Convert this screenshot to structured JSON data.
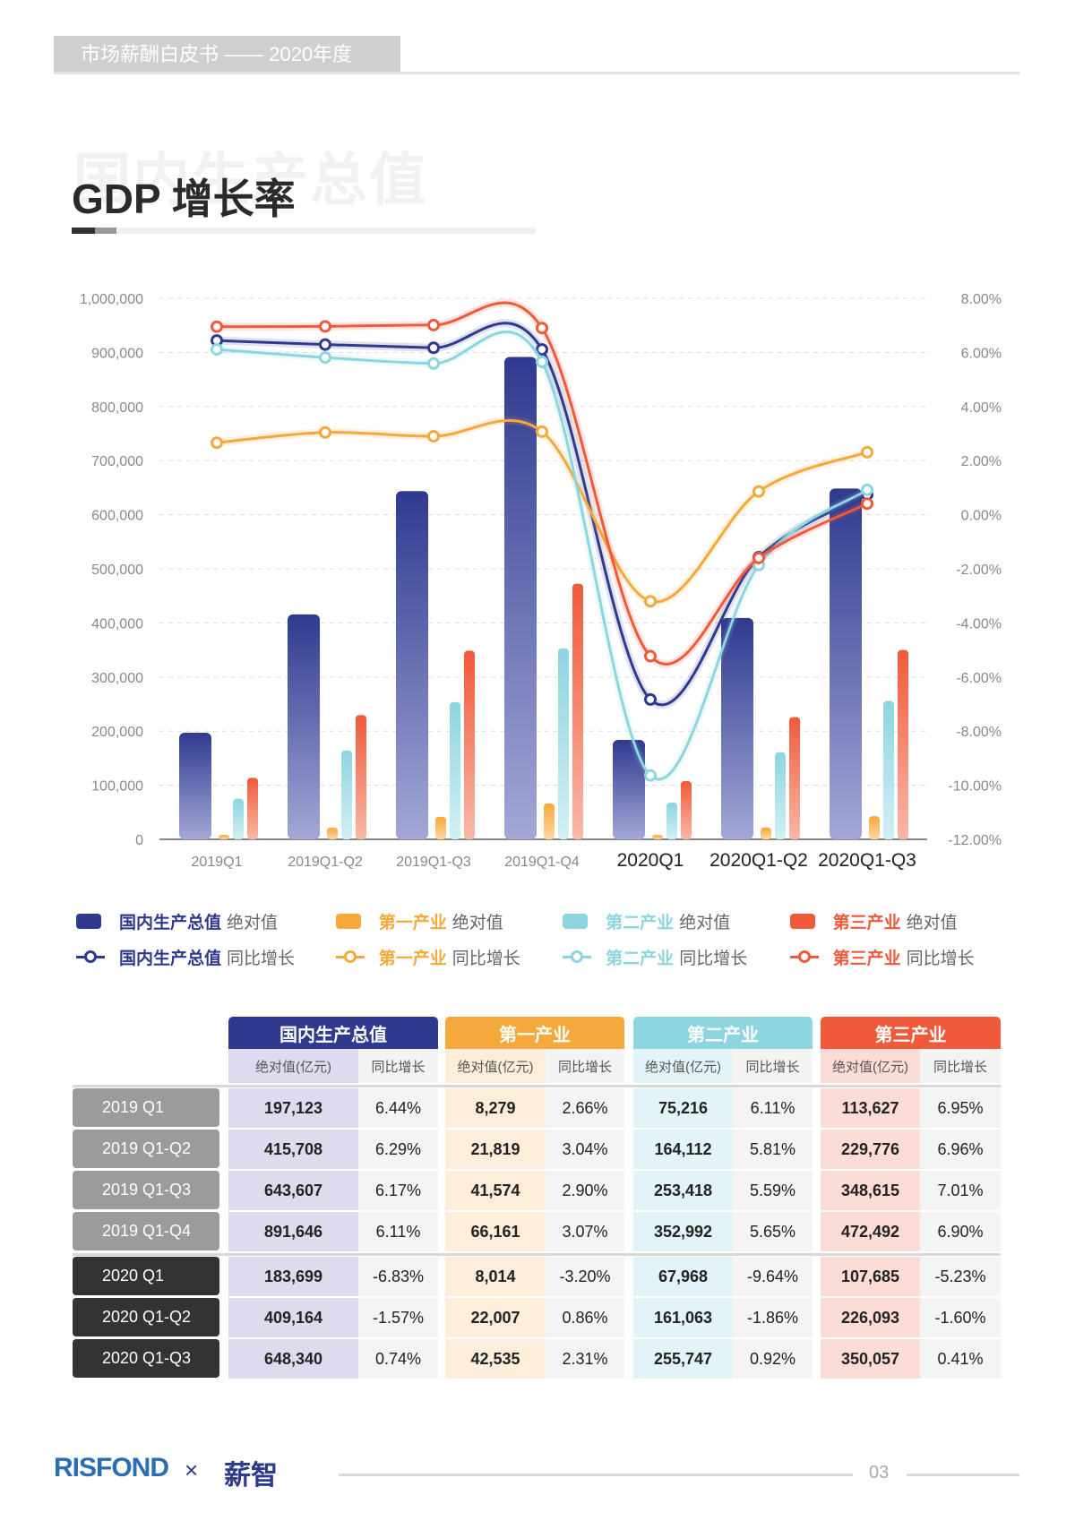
{
  "header": {
    "label": "市场薪酬白皮书 —— 2020年度"
  },
  "page": {
    "watermark": "国内生产总值",
    "title": "GDP 增长率"
  },
  "colors": {
    "gdp": "#2f3a8f",
    "primary": "#f5a83b",
    "secondary": "#8dd5df",
    "tertiary": "#f05a3a"
  },
  "chart_data": {
    "type": "bar+line",
    "categories": [
      "2019Q1",
      "2019Q1-Q2",
      "2019Q1-Q3",
      "2019Q1-Q4",
      "2020Q1",
      "2020Q1-Q2",
      "2020Q1-Q3"
    ],
    "y_left": {
      "range": [
        0,
        1000000
      ],
      "ticks": [
        "1,000,000",
        "900,000",
        "800,000",
        "700,000",
        "600,000",
        "500,000",
        "400,000",
        "300,000",
        "200,000",
        "100,000",
        "0"
      ]
    },
    "y_right": {
      "range": [
        -12,
        8
      ],
      "ticks": [
        "8.00%",
        "6.00%",
        "4.00%",
        "2.00%",
        "0.00%",
        "-2.00%",
        "-4.00%",
        "-6.00%",
        "-8.00%",
        "-10.00%",
        "-12.00%"
      ]
    },
    "grid": true,
    "legend_position": "bottom",
    "bar_series": [
      {
        "name": "国内生产总值",
        "suffix": "绝对值",
        "color_key": "gdp",
        "values": [
          197123,
          415708,
          643607,
          891646,
          183699,
          409164,
          648340
        ]
      },
      {
        "name": "第一产业",
        "suffix": "绝对值",
        "color_key": "primary",
        "values": [
          8279,
          21819,
          41574,
          66161,
          8014,
          22007,
          42535
        ]
      },
      {
        "name": "第二产业",
        "suffix": "绝对值",
        "color_key": "secondary",
        "values": [
          75216,
          164112,
          253418,
          352992,
          67968,
          161063,
          255747
        ]
      },
      {
        "name": "第三产业",
        "suffix": "绝对值",
        "color_key": "tertiary",
        "values": [
          113627,
          229776,
          348615,
          472492,
          107685,
          226093,
          350057
        ]
      }
    ],
    "line_series": [
      {
        "name": "国内生产总值",
        "suffix": "同比增长",
        "color_key": "gdp",
        "values": [
          6.44,
          6.29,
          6.17,
          6.11,
          -6.83,
          -1.57,
          0.74
        ]
      },
      {
        "name": "第一产业",
        "suffix": "同比增长",
        "color_key": "primary",
        "values": [
          2.66,
          3.04,
          2.9,
          3.07,
          -3.2,
          0.86,
          2.31
        ]
      },
      {
        "name": "第二产业",
        "suffix": "同比增长",
        "color_key": "secondary",
        "values": [
          6.11,
          5.81,
          5.59,
          5.65,
          -9.64,
          -1.86,
          0.92
        ]
      },
      {
        "name": "第三产业",
        "suffix": "同比增长",
        "color_key": "tertiary",
        "values": [
          6.95,
          6.96,
          7.01,
          6.9,
          -5.23,
          -1.6,
          0.41
        ]
      }
    ]
  },
  "table": {
    "groups": [
      "国内生产总值",
      "第一产业",
      "第二产业",
      "第三产业"
    ],
    "sub_headers": [
      "绝对值(亿元)",
      "同比增长"
    ],
    "rows": [
      {
        "label": "2019 Q1",
        "year": "2019",
        "cells": [
          "197,123",
          "6.44%",
          "8,279",
          "2.66%",
          "75,216",
          "6.11%",
          "113,627",
          "6.95%"
        ]
      },
      {
        "label": "2019 Q1-Q2",
        "year": "2019",
        "cells": [
          "415,708",
          "6.29%",
          "21,819",
          "3.04%",
          "164,112",
          "5.81%",
          "229,776",
          "6.96%"
        ]
      },
      {
        "label": "2019 Q1-Q3",
        "year": "2019",
        "cells": [
          "643,607",
          "6.17%",
          "41,574",
          "2.90%",
          "253,418",
          "5.59%",
          "348,615",
          "7.01%"
        ]
      },
      {
        "label": "2019 Q1-Q4",
        "year": "2019",
        "cells": [
          "891,646",
          "6.11%",
          "66,161",
          "3.07%",
          "352,992",
          "5.65%",
          "472,492",
          "6.90%"
        ]
      },
      {
        "label": "2020 Q1",
        "year": "2020",
        "cells": [
          "183,699",
          "-6.83%",
          "8,014",
          "-3.20%",
          "67,968",
          "-9.64%",
          "107,685",
          "-5.23%"
        ]
      },
      {
        "label": "2020 Q1-Q2",
        "year": "2020",
        "cells": [
          "409,164",
          "-1.57%",
          "22,007",
          "0.86%",
          "161,063",
          "-1.86%",
          "226,093",
          "-1.60%"
        ]
      },
      {
        "label": "2020 Q1-Q3",
        "year": "2020",
        "cells": [
          "648,340",
          "0.74%",
          "42,535",
          "2.31%",
          "255,747",
          "0.92%",
          "350,057",
          "0.41%"
        ]
      }
    ]
  },
  "footer": {
    "logo_left": "RISFOND",
    "separator": "×",
    "logo_right": "薪智",
    "page_number": "03"
  }
}
